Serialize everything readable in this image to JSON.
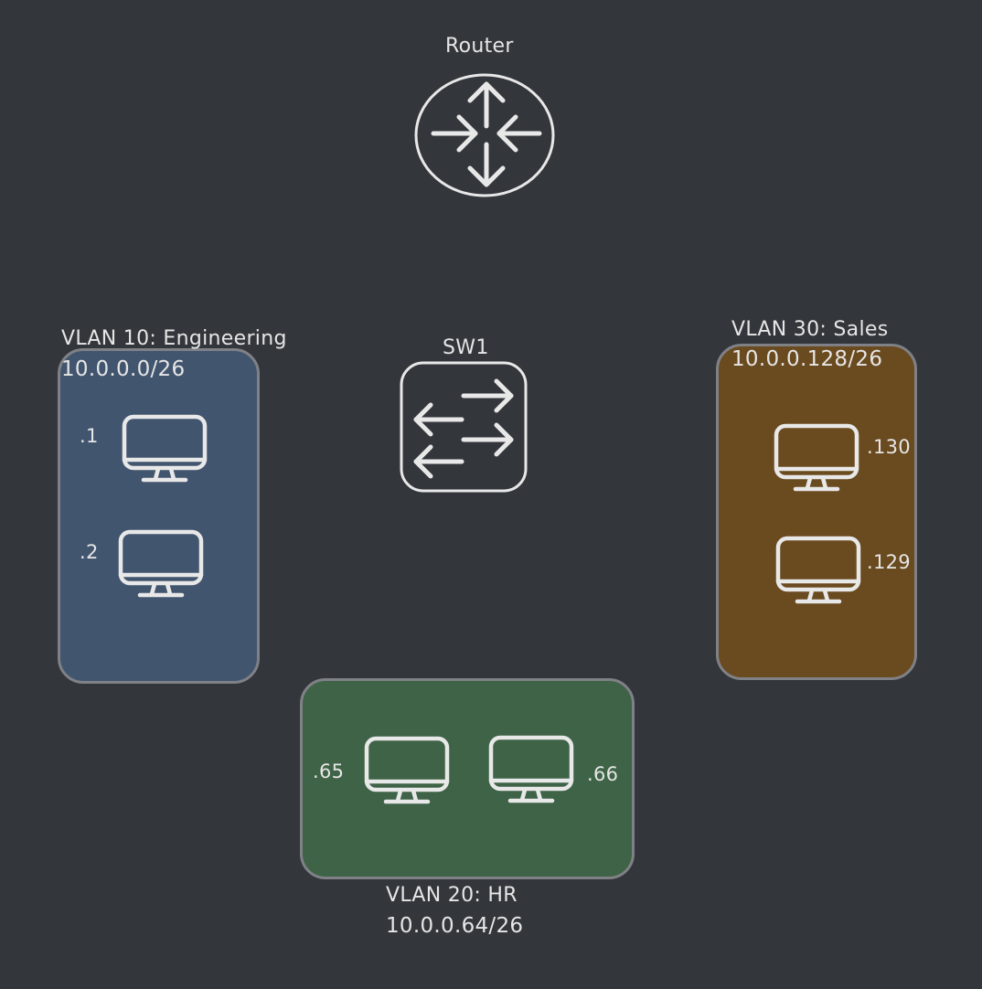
{
  "router": {
    "label": "Router",
    "icon": "router-icon"
  },
  "switch": {
    "label": "SW1",
    "icon": "switch-icon"
  },
  "vlans": [
    {
      "title": "VLAN 10: Engineering",
      "subnet": "10.0.0.0/26",
      "color": "#42556f",
      "hosts": [
        ".1",
        ".2"
      ]
    },
    {
      "title": "VLAN 20: HR",
      "subnet": "10.0.0.64/26",
      "color": "#3e6346",
      "hosts": [
        ".65",
        ".66"
      ]
    },
    {
      "title": "VLAN 30: Sales",
      "subnet": "10.0.0.128/26",
      "color": "#6a4a1f",
      "hosts": [
        ".130",
        ".129"
      ]
    }
  ],
  "host_icon": "monitor-icon",
  "colors": {
    "background": "#33363b",
    "stroke": "#e8e8e8",
    "box_border": "#7f8186"
  }
}
